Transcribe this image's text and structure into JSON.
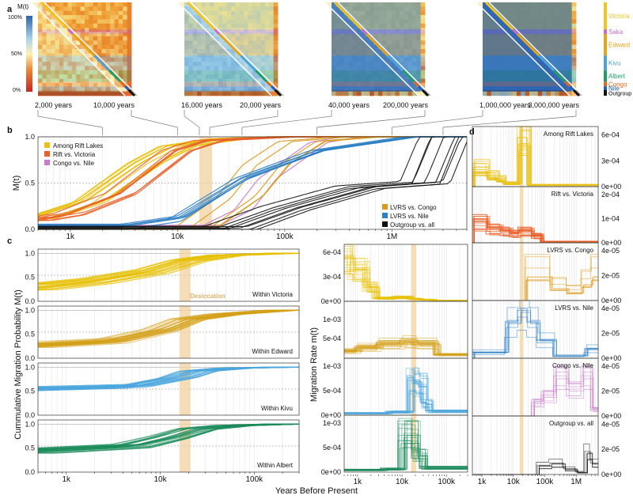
{
  "panel_labels": {
    "a": "a",
    "b": "b",
    "c": "c",
    "d": "d"
  },
  "legend_mt": {
    "title": "M(t)",
    "ticks": [
      "100%",
      "50%",
      "0%"
    ]
  },
  "heatmap_times": [
    "2,000 years",
    "10,000 years",
    "16,000 years",
    "20,000 years",
    "40,000 years",
    "200,000 years",
    "1,000,000 years",
    "3,000,000 years"
  ],
  "heatmap_levels": [
    0.35,
    0.45,
    0.62,
    0.72,
    0.86,
    0.93,
    0.97,
    0.99
  ],
  "lake_groups": [
    {
      "name": "Victoria",
      "color": "#f2c51d"
    },
    {
      "name": "Saka",
      "color": "#c86cc8"
    },
    {
      "name": "Edward",
      "color": "#e8a317"
    },
    {
      "name": "Kivu",
      "color": "#4ba3d9"
    },
    {
      "name": "Albert",
      "color": "#1f9e6a"
    },
    {
      "name": "Congo",
      "color": "#e06a1a"
    },
    {
      "name": "Nile",
      "color": "#1f5fbf"
    },
    {
      "name": "Outgroup",
      "color": "#111111"
    }
  ],
  "colors": {
    "rift_lakes": "#e8c21a",
    "rift_victoria": "#e8602a",
    "congo_nile": "#c77cc7",
    "lvrs_congo": "#d99a1e",
    "lvrs_nile": "#2e7fc4",
    "outgroup": "#111111",
    "victoria": "#e6c000",
    "edward": "#d4a017",
    "kivu": "#4ba6dc",
    "albert": "#1a8a5a",
    "desiccation": "#f1d1a0"
  },
  "annotation": {
    "desiccation": "Desiccation"
  },
  "chart_data": [
    {
      "type": "line",
      "panel": "b",
      "ylabel": "M(t)",
      "xscale": "log",
      "xlim": [
        500,
        5000000
      ],
      "ylim": [
        0,
        1
      ],
      "yticks": [
        "0.0",
        "0.5",
        "1.0"
      ],
      "xticks": [
        "1k",
        "10k",
        "100k",
        "1M"
      ],
      "legend": [
        "Among Rift Lakes",
        "Rift vs. Victoria",
        "Congo vs. Nile",
        "LVRS vs. Congo",
        "LVRS vs. Nile",
        "Outgroup vs. all"
      ],
      "series": [
        {
          "name": "Among Rift Lakes",
          "x": [
            500,
            1500,
            5000,
            10000,
            30000,
            100000
          ],
          "y": [
            0.12,
            0.3,
            0.72,
            0.9,
            0.98,
            1.0
          ]
        },
        {
          "name": "Rift vs. Victoria",
          "x": [
            500,
            1000,
            3000,
            10000,
            20000,
            100000
          ],
          "y": [
            0.1,
            0.16,
            0.38,
            0.85,
            0.96,
            1.0
          ]
        },
        {
          "name": "Congo vs. Nile",
          "x": [
            30000,
            60000,
            100000,
            300000,
            600000
          ],
          "y": [
            0.05,
            0.22,
            0.55,
            0.94,
            1.0
          ]
        },
        {
          "name": "LVRS vs. Congo",
          "x": [
            15000,
            40000,
            70000,
            150000,
            500000
          ],
          "y": [
            0.0,
            0.35,
            0.7,
            0.95,
            1.0
          ]
        },
        {
          "name": "LVRS vs. Nile",
          "x": [
            3000,
            10000,
            40000,
            200000,
            1500000
          ],
          "y": [
            0.03,
            0.12,
            0.55,
            0.85,
            1.0
          ]
        },
        {
          "name": "Outgroup vs. all",
          "x": [
            30000,
            100000,
            500000,
            2000000,
            3000000
          ],
          "y": [
            0.0,
            0.22,
            0.45,
            0.5,
            1.0
          ]
        }
      ]
    },
    {
      "type": "line",
      "panel": "c-left",
      "ylabel": "Cummulative Migration Probability M(t)",
      "xlabel": "Years Before Present",
      "xscale": "log",
      "xlim": [
        500,
        300000
      ],
      "ylim": [
        0,
        1
      ],
      "yticks": [
        "0.0",
        "0.5",
        "1.0"
      ],
      "xticks": [
        "1k",
        "10k",
        "100k"
      ],
      "series": [
        {
          "name": "Within Victoria",
          "x": [
            500,
            2000,
            8000,
            20000,
            50000,
            200000
          ],
          "y": [
            0.3,
            0.42,
            0.62,
            0.85,
            0.96,
            1.0
          ]
        },
        {
          "name": "Within Edward",
          "x": [
            500,
            3000,
            10000,
            20000,
            50000,
            200000
          ],
          "y": [
            0.3,
            0.38,
            0.6,
            0.82,
            0.92,
            1.0
          ]
        },
        {
          "name": "Within Kivu",
          "x": [
            500,
            5000,
            15000,
            25000,
            60000,
            200000
          ],
          "y": [
            0.55,
            0.6,
            0.78,
            0.92,
            0.98,
            1.0
          ]
        },
        {
          "name": "Within Albert",
          "x": [
            500,
            5000,
            12000,
            25000,
            60000,
            200000
          ],
          "y": [
            0.45,
            0.55,
            0.72,
            0.9,
            0.97,
            1.0
          ]
        }
      ]
    },
    {
      "type": "step",
      "panel": "c-right",
      "ylabel": "Migration Rate m(t)",
      "xscale": "log",
      "xlim": [
        500,
        300000
      ],
      "xticks": [
        "1k",
        "10k",
        "100k"
      ],
      "series": [
        {
          "name": "Within Victoria",
          "yticks": [
            "0e+00",
            "3e-04",
            "6e-04"
          ],
          "ylim": [
            0,
            0.0007
          ],
          "x": [
            500,
            700,
            1500,
            2500,
            6000,
            15000,
            25000,
            50000
          ],
          "y": [
            0.00055,
            0.0004,
            0.00018,
            4e-05,
            5e-05,
            3e-05,
            2e-05,
            1e-05
          ]
        },
        {
          "name": "Within Edward",
          "yticks": [
            "5e-04",
            "1e-03"
          ],
          "ylim": [
            0,
            0.0015
          ],
          "x": [
            500,
            1000,
            3000,
            10000,
            20000,
            60000
          ],
          "y": [
            0.0002,
            0.0003,
            0.0004,
            0.00045,
            0.0004,
            0.0001
          ]
        },
        {
          "name": "Within Kivu",
          "yticks": [
            "0e+00",
            "5e-04",
            "1e-03"
          ],
          "ylim": [
            0,
            0.0015
          ],
          "x": [
            500,
            5000,
            15000,
            20000,
            30000,
            40000
          ],
          "y": [
            5e-05,
            8e-05,
            0.0009,
            0.0008,
            0.0003,
            0.0001
          ]
        },
        {
          "name": "Within Albert",
          "yticks": [
            "0e+00",
            "5e-04",
            "1e-03"
          ],
          "ylim": [
            0,
            0.0013
          ],
          "x": [
            500,
            4000,
            10000,
            20000,
            30000
          ],
          "y": [
            5e-05,
            7e-05,
            0.0009,
            0.0004,
            0.0001
          ]
        }
      ]
    },
    {
      "type": "step",
      "panel": "d",
      "xscale": "log",
      "xlim": [
        500,
        5000000
      ],
      "xticks": [
        "1k",
        "10k",
        "100k",
        "1M"
      ],
      "series": [
        {
          "name": "Among Rift Lakes",
          "yticks": [
            "0e+00",
            "3e-04",
            "6e-04"
          ],
          "ylim": [
            0,
            0.0007
          ],
          "x": [
            500,
            1500,
            3000,
            5000,
            15000,
            30000
          ],
          "y": [
            0.00022,
            0.00013,
            9e-05,
            4e-05,
            0.00063,
            2e-05
          ]
        },
        {
          "name": "Rift vs. Victoria",
          "yticks": [
            "0e+00",
            "1e-04",
            "2e-04"
          ],
          "ylim": [
            0,
            0.00025
          ],
          "x": [
            500,
            1500,
            4000,
            8000,
            15000,
            40000,
            80000
          ],
          "y": [
            9e-05,
            6e-05,
            5e-05,
            4e-05,
            5e-05,
            3e-05,
            5e-06
          ]
        },
        {
          "name": "LVRS vs. Congo",
          "yticks": [
            "0e+00",
            "2e-05",
            "4e-05"
          ],
          "ylim": [
            0,
            5e-05
          ],
          "x": [
            25000,
            50000,
            150000,
            500000,
            1500000,
            3000000
          ],
          "y": [
            3e-05,
            3e-05,
            1.5e-05,
            1e-05,
            2e-05,
            3e-05
          ]
        },
        {
          "name": "LVRS vs. Nile",
          "yticks": [
            "0e+00",
            "2e-05",
            "4e-05"
          ],
          "ylim": [
            0,
            4.8e-05
          ],
          "x": [
            500,
            6000,
            15000,
            30000,
            60000,
            200000,
            2000000
          ],
          "y": [
            5e-06,
            3e-05,
            4e-05,
            3e-05,
            1.5e-05,
            2e-06,
            8e-06
          ]
        },
        {
          "name": "Congo vs. Nile",
          "yticks": [
            "0e+00",
            "2e-05",
            "4e-05"
          ],
          "ylim": [
            0,
            4.8e-05
          ],
          "x": [
            40000,
            80000,
            200000,
            500000,
            1500000,
            3000000
          ],
          "y": [
            1e-05,
            1.5e-05,
            3e-05,
            2e-05,
            3e-05,
            5e-06
          ]
        },
        {
          "name": "Outgroup vs. all",
          "yticks": [
            "0e+00",
            "2e-05",
            "4e-05"
          ],
          "ylim": [
            0,
            4.8e-05
          ],
          "x": [
            60000,
            150000,
            400000,
            1000000,
            2000000,
            3000000
          ],
          "y": [
            8e-06,
            1e-05,
            5e-06,
            2e-06,
            2e-05,
            1e-05
          ]
        }
      ]
    }
  ]
}
